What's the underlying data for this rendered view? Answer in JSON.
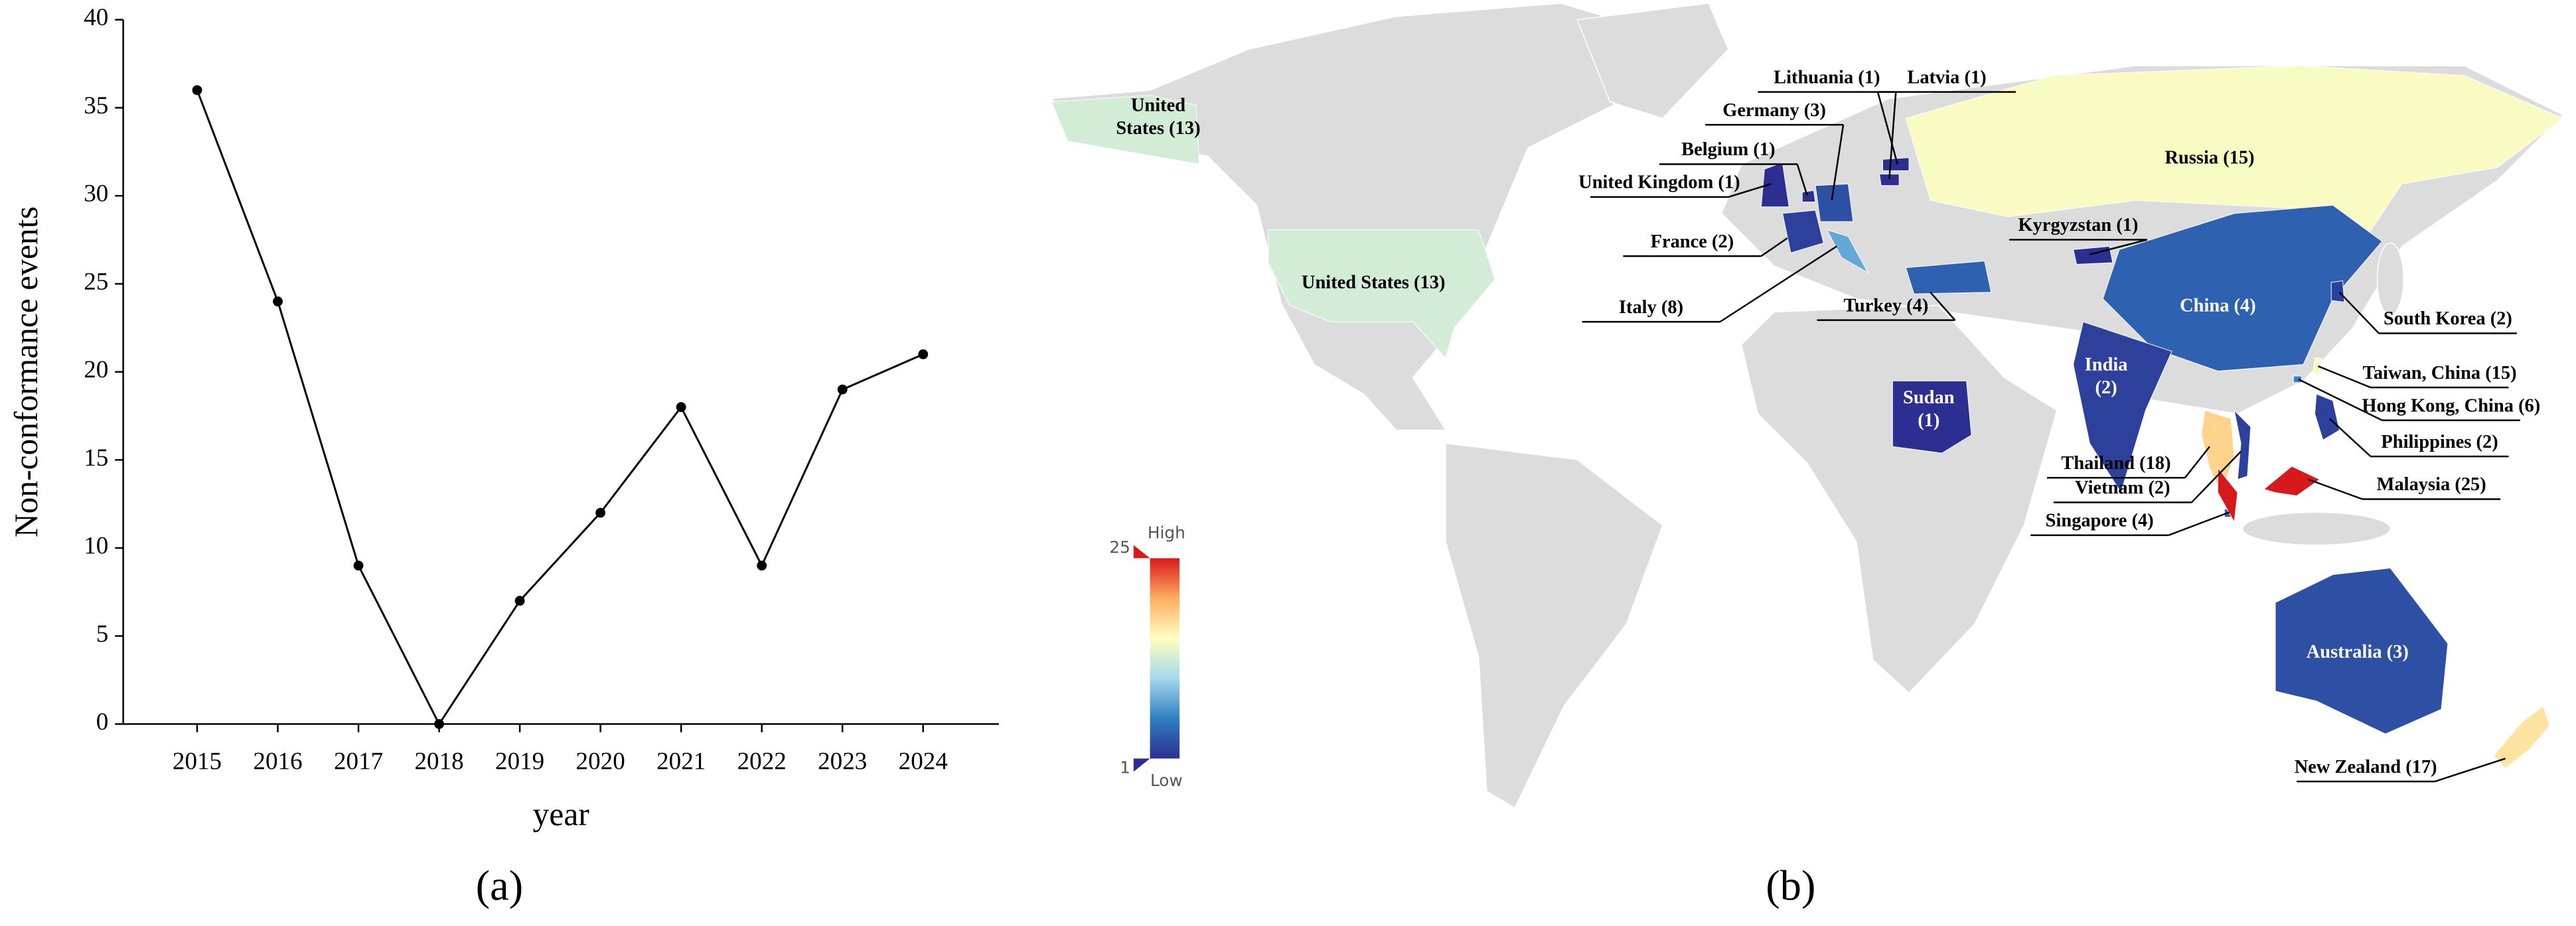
{
  "chart_data": [
    {
      "type": "line",
      "categories": [
        "2015",
        "2016",
        "2017",
        "2018",
        "2019",
        "2020",
        "2021",
        "2022",
        "2023",
        "2024"
      ],
      "values": [
        36,
        24,
        9,
        0,
        7,
        12,
        18,
        9,
        19,
        21
      ],
      "color": "#000000",
      "ylim": [
        0,
        40
      ],
      "yticks": [
        0,
        5,
        10,
        15,
        20,
        25,
        30,
        35,
        40
      ],
      "ylabel": "Non-conformance events",
      "xlabel": "year",
      "panel_label": "(a)"
    },
    {
      "type": "map",
      "panel_label": "(b)",
      "colorscale": [
        "#2c2f91",
        "#2f7fc1",
        "#a6d8ec",
        "#ffffbf",
        "#fdae61",
        "#d7191c"
      ],
      "colorlim": [
        1,
        25
      ],
      "legend_ticks": [
        25,
        1
      ],
      "legend_high": "High",
      "legend_low": "Low",
      "regions": [
        {
          "label": [
            "United",
            "States (13)"
          ],
          "value": 13
        },
        {
          "label": [
            "United States (13)"
          ],
          "value": 13
        },
        {
          "label": [
            "Russia (15)"
          ],
          "value": 15
        },
        {
          "label": [
            "China (4)"
          ],
          "value": 4
        },
        {
          "label": [
            "India",
            "(2)"
          ],
          "value": 2
        },
        {
          "label": [
            "Australia (3)"
          ],
          "value": 3
        },
        {
          "label": [
            "Sudan",
            "(1)"
          ],
          "value": 1
        },
        {
          "label": [
            "Turkey (4)"
          ],
          "value": 4
        },
        {
          "label": [
            "Italy (8)"
          ],
          "value": 8
        },
        {
          "label": [
            "France (2)"
          ],
          "value": 2
        },
        {
          "label": [
            "United Kingdom (1)"
          ],
          "value": 1
        },
        {
          "label": [
            "Belgium (1)"
          ],
          "value": 1
        },
        {
          "label": [
            "Germany (3)"
          ],
          "value": 3
        },
        {
          "label": [
            "Lithuania (1)"
          ],
          "value": 1
        },
        {
          "label": [
            "Latvia (1)"
          ],
          "value": 1
        },
        {
          "label": [
            "Kyrgyzstan (1)"
          ],
          "value": 1
        },
        {
          "label": [
            "South Korea (2)"
          ],
          "value": 2
        },
        {
          "label": [
            "Taiwan, China (15)"
          ],
          "value": 15
        },
        {
          "label": [
            "Hong Kong, China (6)"
          ],
          "value": 6
        },
        {
          "label": [
            "Philippines (2)"
          ],
          "value": 2
        },
        {
          "label": [
            "Thailand (18)"
          ],
          "value": 18
        },
        {
          "label": [
            "Vietnam (2)"
          ],
          "value": 2
        },
        {
          "label": [
            "Singapore (4)"
          ],
          "value": 4
        },
        {
          "label": [
            "Malaysia (25)"
          ],
          "value": 25
        },
        {
          "label": [
            "New Zealand (17)"
          ],
          "value": 17
        }
      ]
    }
  ]
}
